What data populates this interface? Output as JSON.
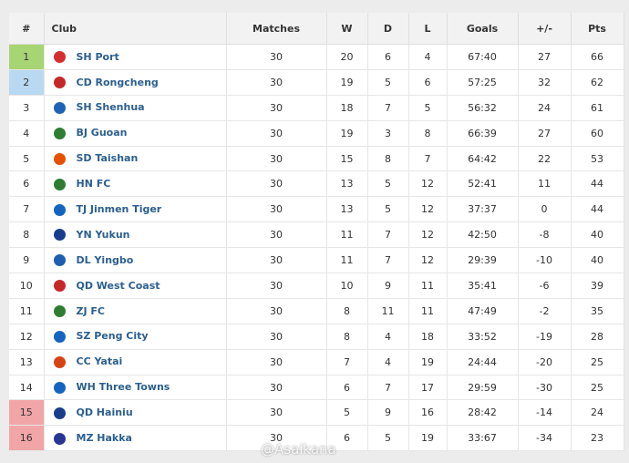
{
  "table": {
    "header": [
      "#",
      "Club",
      "Matches",
      "W",
      "D",
      "L",
      "Goals",
      "+/-",
      "Pts"
    ],
    "rows": [
      [
        1,
        "SH Port",
        30,
        20,
        6,
        4,
        "67:40",
        27,
        66
      ],
      [
        2,
        "CD Rongcheng",
        30,
        19,
        5,
        6,
        "57:25",
        32,
        62
      ],
      [
        3,
        "SH Shenhua",
        30,
        18,
        7,
        5,
        "56:32",
        24,
        61
      ],
      [
        4,
        "BJ Guoan",
        30,
        19,
        3,
        8,
        "66:39",
        27,
        60
      ],
      [
        5,
        "SD Taishan",
        30,
        15,
        8,
        7,
        "64:42",
        22,
        53
      ],
      [
        6,
        "HN FC",
        30,
        13,
        5,
        12,
        "52:41",
        11,
        44
      ],
      [
        7,
        "TJ Jinmen Tiger",
        30,
        13,
        5,
        12,
        "37:37",
        0,
        44
      ],
      [
        8,
        "YN Yukun",
        30,
        11,
        7,
        12,
        "42:50",
        -8,
        40
      ],
      [
        9,
        "DL Yingbo",
        30,
        11,
        7,
        12,
        "29:39",
        -10,
        40
      ],
      [
        10,
        "QD West Coast",
        30,
        10,
        9,
        11,
        "35:41",
        -6,
        39
      ],
      [
        11,
        "ZJ FC",
        30,
        8,
        11,
        11,
        "47:49",
        -2,
        35
      ],
      [
        12,
        "SZ Peng City",
        30,
        8,
        4,
        18,
        "33:52",
        -19,
        28
      ],
      [
        13,
        "CC Yatai",
        30,
        7,
        4,
        19,
        "24:44",
        -20,
        25
      ],
      [
        14,
        "WH Three Towns",
        30,
        6,
        7,
        17,
        "29:59",
        -30,
        25
      ],
      [
        15,
        "QD Hainiu",
        30,
        5,
        9,
        16,
        "28:42",
        -14,
        24
      ],
      [
        16,
        "MZ Hakka",
        30,
        6,
        5,
        19,
        "33:67",
        -34,
        23
      ]
    ]
  },
  "watermark": "@Asaikana"
}
